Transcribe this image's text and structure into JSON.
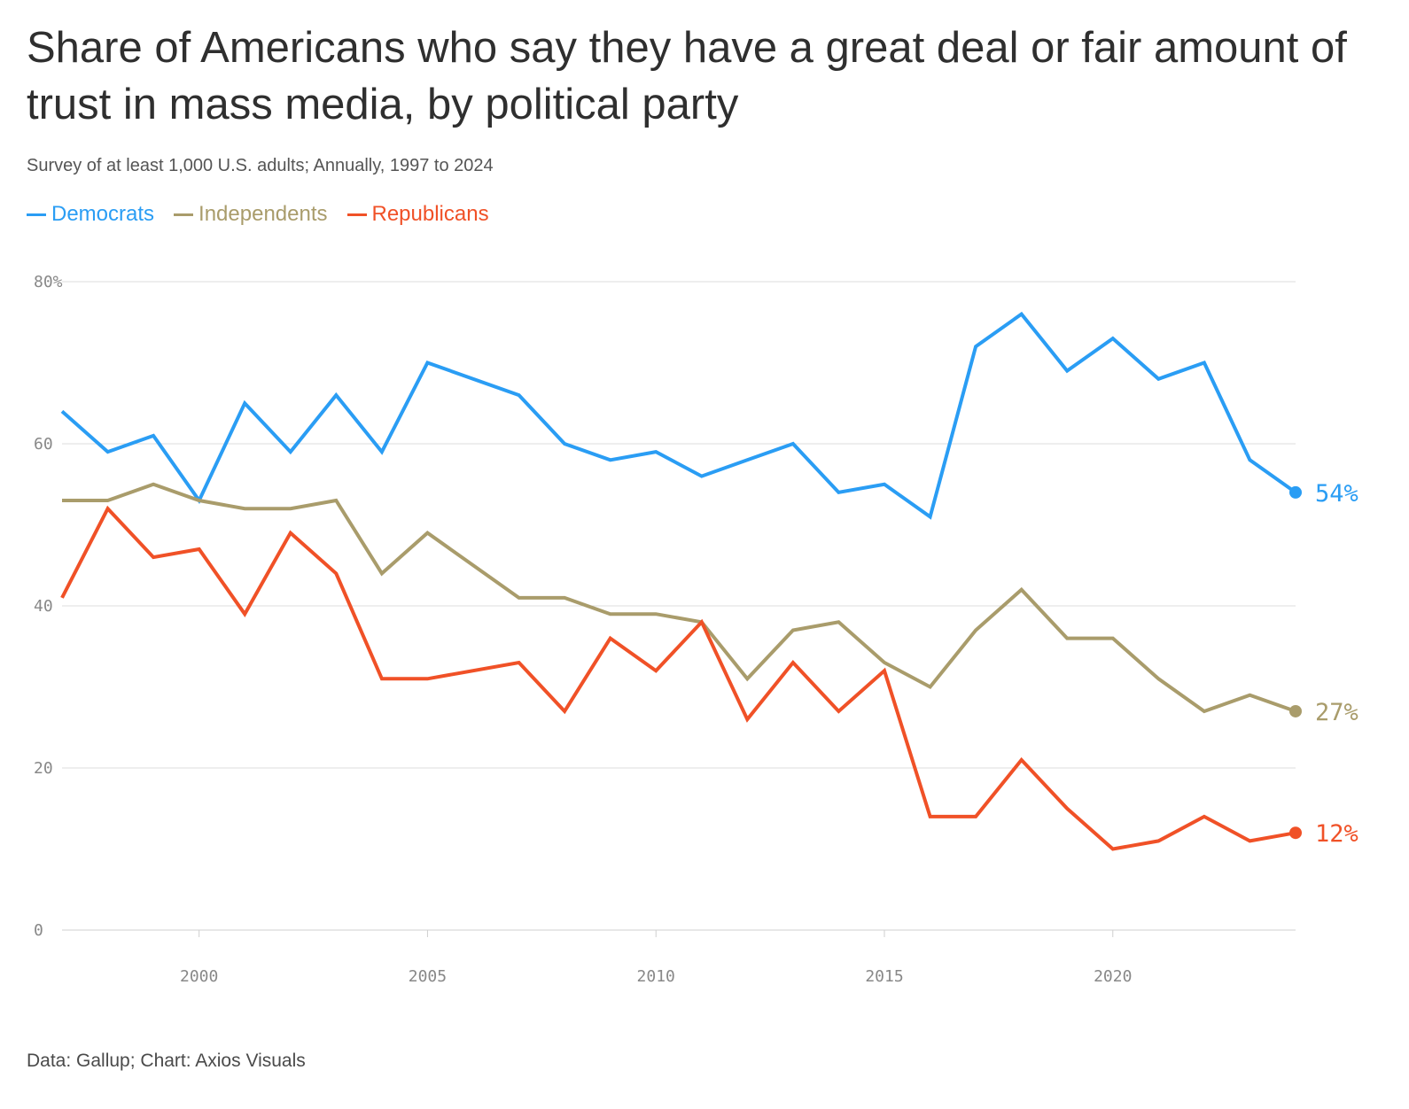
{
  "title": "Share of Americans who say they have a great deal or fair amount of trust in mass media, by political party",
  "subtitle": "Survey of at least 1,000 U.S. adults; Annually, 1997 to 2024",
  "source": "Data: Gallup; Chart: Axios Visuals",
  "legend": [
    {
      "label": "Democrats",
      "color": "#2a9df4"
    },
    {
      "label": "Independents",
      "color": "#a99c6b"
    },
    {
      "label": "Republicans",
      "color": "#f05127"
    }
  ],
  "chart_data": {
    "type": "line",
    "title": "Share of Americans who say they have a great deal or fair amount of trust in mass media, by political party",
    "xlabel": "",
    "ylabel": "",
    "xlim": [
      1997,
      2024
    ],
    "ylim": [
      0,
      80
    ],
    "y_ticks": [
      0,
      20,
      40,
      60,
      80
    ],
    "y_tick_labels": [
      "0",
      "20",
      "40",
      "60",
      "80%"
    ],
    "x_ticks": [
      2000,
      2005,
      2010,
      2015,
      2020
    ],
    "x_tick_labels": [
      "2000",
      "2005",
      "2010",
      "2015",
      "2020"
    ],
    "grid": "horizontal",
    "legend_position": "top-left",
    "x": [
      1997,
      1998,
      1999,
      2000,
      2001,
      2002,
      2003,
      2004,
      2005,
      2007,
      2008,
      2009,
      2010,
      2011,
      2012,
      2013,
      2014,
      2015,
      2016,
      2017,
      2018,
      2019,
      2020,
      2021,
      2022,
      2023,
      2024
    ],
    "series": [
      {
        "name": "Democrats",
        "color": "#2a9df4",
        "end_label": "54%",
        "values": [
          64,
          59,
          61,
          53,
          65,
          59,
          66,
          59,
          70,
          66,
          60,
          58,
          59,
          56,
          58,
          60,
          54,
          55,
          51,
          72,
          76,
          69,
          73,
          68,
          70,
          58,
          54
        ]
      },
      {
        "name": "Independents",
        "color": "#a99c6b",
        "end_label": "27%",
        "values": [
          53,
          53,
          55,
          53,
          52,
          52,
          53,
          44,
          49,
          41,
          41,
          39,
          39,
          38,
          31,
          37,
          38,
          33,
          30,
          37,
          42,
          36,
          36,
          31,
          27,
          29,
          27
        ]
      },
      {
        "name": "Republicans",
        "color": "#f05127",
        "end_label": "12%",
        "values": [
          41,
          52,
          46,
          47,
          39,
          49,
          44,
          31,
          31,
          33,
          27,
          36,
          32,
          38,
          26,
          33,
          27,
          32,
          14,
          14,
          21,
          15,
          10,
          11,
          14,
          11,
          12
        ]
      }
    ]
  }
}
